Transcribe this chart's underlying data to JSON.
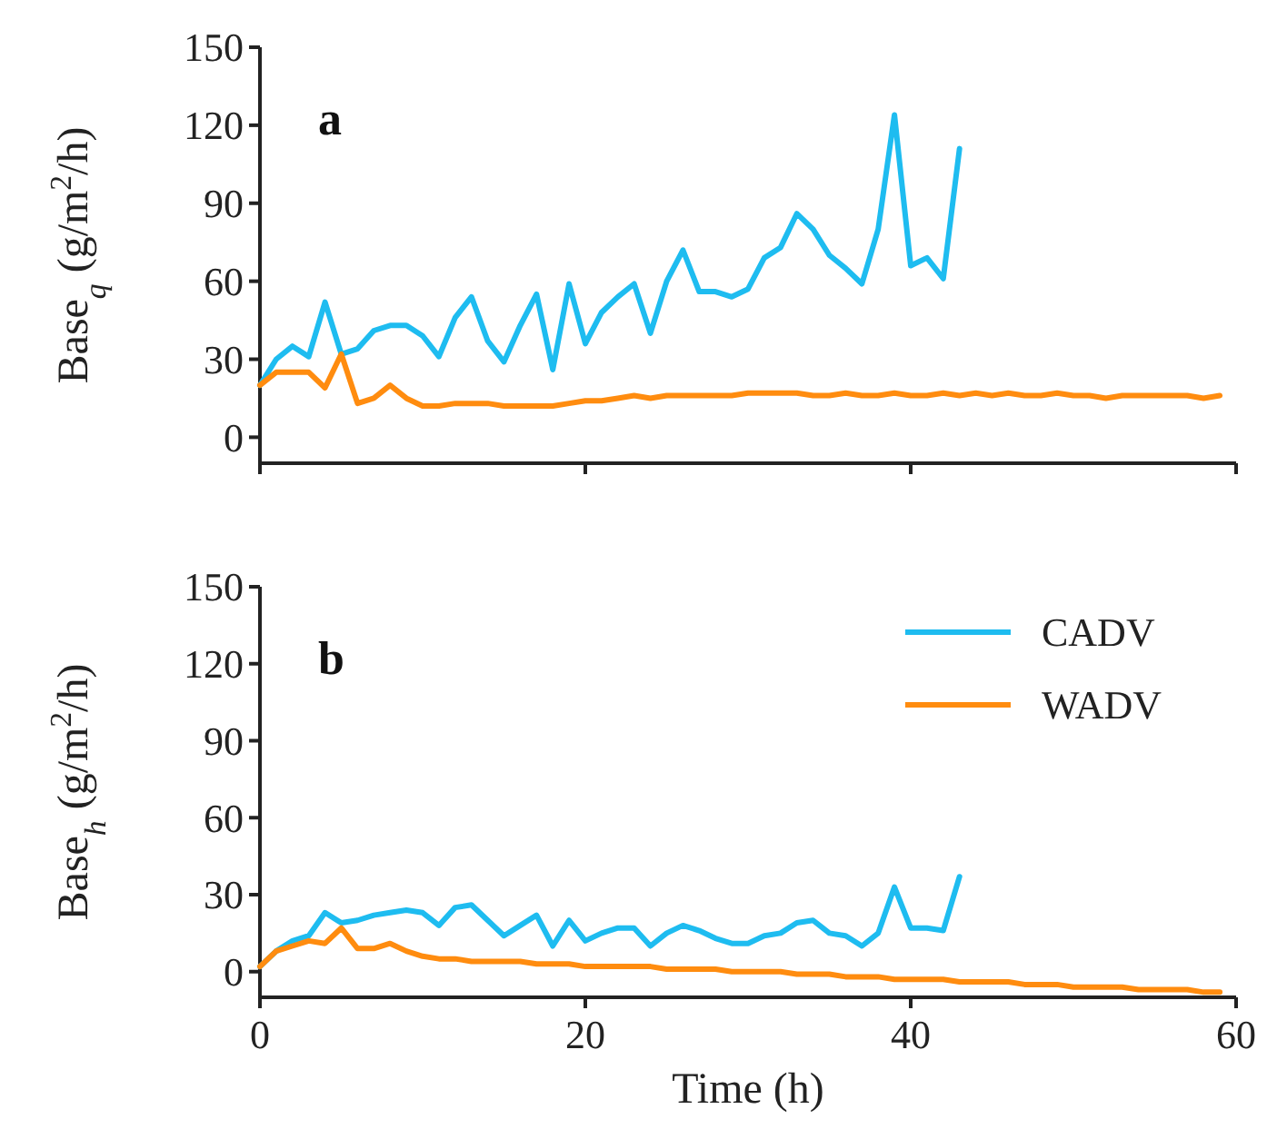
{
  "chart_data": [
    {
      "type": "line",
      "ylabel": "Base$_{q}$ (g/m$^{2}$/h)",
      "annotations": [
        "a"
      ],
      "xlim": [
        0,
        60
      ],
      "xticks": [
        0,
        20,
        40,
        60
      ],
      "ylim": [
        -10,
        150
      ],
      "yticks": [
        0,
        30,
        60,
        90,
        120,
        150
      ],
      "tick_labels": "y",
      "legend": false,
      "series": [
        {
          "color": "#1ebcf0",
          "x": [
            0,
            1,
            2,
            3,
            4,
            5,
            6,
            7,
            8,
            9,
            10,
            11,
            12,
            13,
            14,
            15,
            16,
            17,
            18,
            19,
            20,
            21,
            22,
            23,
            24,
            25,
            26,
            27,
            28,
            29,
            30,
            31,
            32,
            33,
            34,
            35,
            36,
            37,
            38,
            39,
            40,
            41,
            42,
            43
          ],
          "values": [
            20,
            30,
            35,
            31,
            52,
            32,
            34,
            41,
            43,
            43,
            39,
            31,
            46,
            54,
            37,
            29,
            43,
            55,
            26,
            59,
            36,
            48,
            54,
            59,
            40,
            60,
            72,
            56,
            56,
            54,
            57,
            69,
            73,
            86,
            80,
            70,
            65,
            59,
            80,
            124,
            66,
            69,
            61,
            111
          ]
        },
        {
          "color": "#ff8c0f",
          "x": [
            0,
            1,
            2,
            3,
            4,
            5,
            6,
            7,
            8,
            9,
            10,
            11,
            12,
            13,
            14,
            15,
            16,
            17,
            18,
            19,
            20,
            21,
            22,
            23,
            24,
            25,
            26,
            27,
            28,
            29,
            30,
            31,
            32,
            33,
            34,
            35,
            36,
            37,
            38,
            39,
            40,
            41,
            42,
            43,
            44,
            45,
            46,
            47,
            48,
            49,
            50,
            51,
            52,
            53,
            54,
            55,
            56,
            57,
            58,
            59
          ],
          "values": [
            20,
            25,
            25,
            25,
            19,
            32,
            13,
            15,
            20,
            15,
            12,
            12,
            13,
            13,
            13,
            12,
            12,
            12,
            12,
            13,
            14,
            14,
            15,
            16,
            15,
            16,
            16,
            16,
            16,
            16,
            17,
            17,
            17,
            17,
            16,
            16,
            17,
            16,
            16,
            17,
            16,
            16,
            17,
            16,
            17,
            16,
            17,
            16,
            16,
            17,
            16,
            16,
            15,
            16,
            16,
            16,
            16,
            16,
            15,
            16
          ]
        }
      ]
    },
    {
      "type": "line",
      "xlabel": "Time (h)",
      "ylabel": "Base$_{h}$ (g/m$^{2}$/h)",
      "annotations": [
        "b"
      ],
      "xlim": [
        0,
        60
      ],
      "xticks": [
        0,
        20,
        40,
        60
      ],
      "ylim": [
        -10,
        150
      ],
      "yticks": [
        0,
        30,
        60,
        90,
        120,
        150
      ],
      "legend": "top right",
      "series": [
        {
          "name": "CADV",
          "color": "#1ebcf0",
          "x": [
            0,
            1,
            2,
            3,
            4,
            5,
            6,
            7,
            8,
            9,
            10,
            11,
            12,
            13,
            14,
            15,
            16,
            17,
            18,
            19,
            20,
            21,
            22,
            23,
            24,
            25,
            26,
            27,
            28,
            29,
            30,
            31,
            32,
            33,
            34,
            35,
            36,
            37,
            38,
            39,
            40,
            41,
            42,
            43
          ],
          "values": [
            2,
            8,
            12,
            14,
            23,
            19,
            20,
            22,
            23,
            24,
            23,
            18,
            25,
            26,
            20,
            14,
            18,
            22,
            10,
            20,
            12,
            15,
            17,
            17,
            10,
            15,
            18,
            16,
            13,
            11,
            11,
            14,
            15,
            19,
            20,
            15,
            14,
            10,
            15,
            33,
            17,
            17,
            16,
            37
          ]
        },
        {
          "name": "WADV",
          "color": "#ff8c0f",
          "x": [
            0,
            1,
            2,
            3,
            4,
            5,
            6,
            7,
            8,
            9,
            10,
            11,
            12,
            13,
            14,
            15,
            16,
            17,
            18,
            19,
            20,
            21,
            22,
            23,
            24,
            25,
            26,
            27,
            28,
            29,
            30,
            31,
            32,
            33,
            34,
            35,
            36,
            37,
            38,
            39,
            40,
            41,
            42,
            43,
            44,
            45,
            46,
            47,
            48,
            49,
            50,
            51,
            52,
            53,
            54,
            55,
            56,
            57,
            58,
            59
          ],
          "values": [
            2,
            8,
            10,
            12,
            11,
            17,
            9,
            9,
            11,
            8,
            6,
            5,
            5,
            4,
            4,
            4,
            4,
            3,
            3,
            3,
            2,
            2,
            2,
            2,
            2,
            1,
            1,
            1,
            1,
            0,
            0,
            0,
            0,
            -1,
            -1,
            -1,
            -2,
            -2,
            -2,
            -3,
            -3,
            -3,
            -3,
            -4,
            -4,
            -4,
            -4,
            -5,
            -5,
            -5,
            -6,
            -6,
            -6,
            -6,
            -7,
            -7,
            -7,
            -7,
            -8,
            -8
          ]
        }
      ]
    }
  ]
}
